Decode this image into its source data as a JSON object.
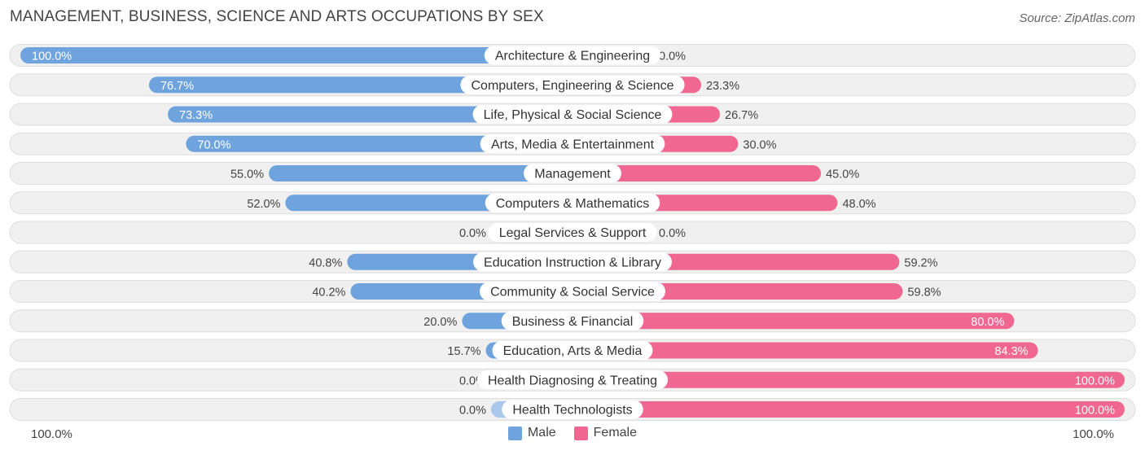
{
  "title": "MANAGEMENT, BUSINESS, SCIENCE AND ARTS OCCUPATIONS BY SEX",
  "source": "Source: ZipAtlas.com",
  "colors": {
    "male": "#6fa3de",
    "male_light": "#a9c8ec",
    "female": "#f06892",
    "female_light": "#f7a3bd",
    "row_bg": "#f0f0f0",
    "row_border": "#dddddd"
  },
  "chart_data": {
    "type": "bar",
    "orientation": "horizontal-diverging",
    "title": "MANAGEMENT, BUSINESS, SCIENCE AND ARTS OCCUPATIONS BY SEX",
    "categories": [
      "Architecture & Engineering",
      "Computers, Engineering & Science",
      "Life, Physical & Social Science",
      "Arts, Media & Entertainment",
      "Management",
      "Computers & Mathematics",
      "Legal Services & Support",
      "Education Instruction & Library",
      "Community & Social Service",
      "Business & Financial",
      "Education, Arts & Media",
      "Health Diagnosing & Treating",
      "Health Technologists"
    ],
    "series": [
      {
        "name": "Male",
        "values": [
          100.0,
          76.7,
          73.3,
          70.0,
          55.0,
          52.0,
          0.0,
          40.8,
          40.2,
          20.0,
          15.7,
          0.0,
          0.0
        ],
        "labels": [
          "100.0%",
          "76.7%",
          "73.3%",
          "70.0%",
          "55.0%",
          "52.0%",
          "0.0%",
          "40.8%",
          "40.2%",
          "20.0%",
          "15.7%",
          "0.0%",
          "0.0%"
        ]
      },
      {
        "name": "Female",
        "values": [
          0.0,
          23.3,
          26.7,
          30.0,
          45.0,
          48.0,
          0.0,
          59.2,
          59.8,
          80.0,
          84.3,
          100.0,
          100.0
        ],
        "labels": [
          "0.0%",
          "23.3%",
          "26.7%",
          "30.0%",
          "45.0%",
          "48.0%",
          "0.0%",
          "59.2%",
          "59.8%",
          "80.0%",
          "84.3%",
          "100.0%",
          "100.0%"
        ]
      }
    ],
    "xlim": [
      0,
      100
    ],
    "axis_left_label": "100.0%",
    "axis_right_label": "100.0%",
    "legend": [
      "Male",
      "Female"
    ],
    "legend_position": "bottom-center"
  }
}
